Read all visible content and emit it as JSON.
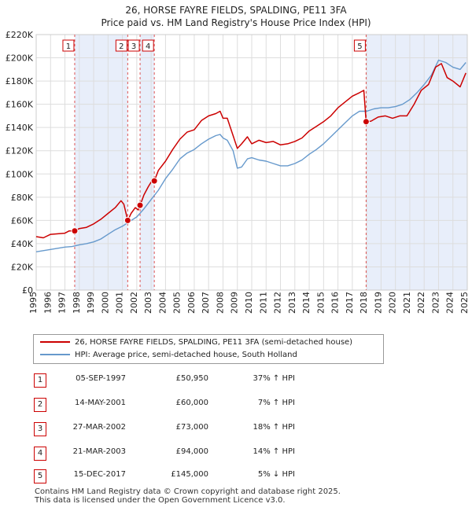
{
  "chart_data": {
    "type": "line",
    "title": "26, HORSE FAYRE FIELDS, SPALDING, PE11 3FA",
    "subtitle": "Price paid vs. HM Land Registry's House Price Index (HPI)",
    "xlim": [
      1995,
      2025
    ],
    "ylim": [
      0,
      220000
    ],
    "x_ticks": [
      "1995",
      "1996",
      "1997",
      "1998",
      "1999",
      "2000",
      "2001",
      "2002",
      "2003",
      "2004",
      "2005",
      "2006",
      "2007",
      "2008",
      "2009",
      "2010",
      "2011",
      "2012",
      "2013",
      "2014",
      "2015",
      "2016",
      "2017",
      "2018",
      "2019",
      "2020",
      "2021",
      "2022",
      "2023",
      "2024",
      "2025"
    ],
    "y_ticks": [
      {
        "value": 0,
        "label": "£0"
      },
      {
        "value": 20000,
        "label": "£20K"
      },
      {
        "value": 40000,
        "label": "£40K"
      },
      {
        "value": 60000,
        "label": "£60K"
      },
      {
        "value": 80000,
        "label": "£80K"
      },
      {
        "value": 100000,
        "label": "£100K"
      },
      {
        "value": 120000,
        "label": "£120K"
      },
      {
        "value": 140000,
        "label": "£140K"
      },
      {
        "value": 160000,
        "label": "£160K"
      },
      {
        "value": 180000,
        "label": "£180K"
      },
      {
        "value": 200000,
        "label": "£200K"
      },
      {
        "value": 220000,
        "label": "£220K"
      }
    ],
    "grid": true,
    "shaded_periods": [
      [
        1997.68,
        2001.37
      ],
      [
        2002.23,
        2003.22
      ],
      [
        2017.96,
        2025.0
      ]
    ],
    "series": [
      {
        "name": "26, HORSE FAYRE FIELDS, SPALDING, PE11 3FA (semi-detached house)",
        "color": "#cc0000",
        "x": [
          1995.0,
          1995.5,
          1996.0,
          1996.5,
          1997.0,
          1997.3,
          1997.68,
          1998.0,
          1998.5,
          1999.0,
          1999.5,
          2000.0,
          2000.5,
          2000.9,
          2001.1,
          2001.37,
          2001.6,
          2001.9,
          2002.1,
          2002.23,
          2002.5,
          2002.8,
          2003.0,
          2003.22,
          2003.5,
          2004.0,
          2004.5,
          2005.0,
          2005.5,
          2006.0,
          2006.5,
          2007.0,
          2007.5,
          2007.8,
          2008.0,
          2008.3,
          2008.7,
          2009.0,
          2009.3,
          2009.7,
          2010.0,
          2010.5,
          2011.0,
          2011.5,
          2012.0,
          2012.5,
          2013.0,
          2013.5,
          2014.0,
          2014.5,
          2015.0,
          2015.5,
          2016.0,
          2016.5,
          2017.0,
          2017.5,
          2017.8,
          2017.96,
          2018.3,
          2018.8,
          2019.3,
          2019.8,
          2020.3,
          2020.8,
          2021.3,
          2021.8,
          2022.3,
          2022.8,
          2023.2,
          2023.6,
          2024.0,
          2024.5,
          2024.9
        ],
        "values": [
          46000,
          45000,
          48000,
          48500,
          49000,
          51000,
          50950,
          53000,
          54000,
          57000,
          61000,
          66000,
          71000,
          77000,
          74000,
          60000,
          66000,
          71000,
          69000,
          73000,
          82000,
          89000,
          93000,
          94000,
          103000,
          111000,
          121000,
          130000,
          136000,
          138000,
          146000,
          150000,
          152000,
          154000,
          148000,
          148000,
          133000,
          122000,
          126000,
          132000,
          126000,
          129000,
          127000,
          128000,
          125000,
          126000,
          128000,
          131000,
          137000,
          141000,
          145000,
          150000,
          157000,
          162000,
          167000,
          170000,
          172000,
          145000,
          145500,
          149000,
          150000,
          148000,
          150000,
          150000,
          160000,
          172000,
          177000,
          192000,
          195000,
          183000,
          180000,
          175000,
          187000
        ]
      },
      {
        "name": "HPI: Average price, semi-detached house, South Holland",
        "color": "#6699cc",
        "x": [
          1995.0,
          1995.5,
          1996.0,
          1996.5,
          1997.0,
          1997.5,
          1998.0,
          1998.5,
          1999.0,
          1999.5,
          2000.0,
          2000.5,
          2001.0,
          2001.5,
          2002.0,
          2002.5,
          2003.0,
          2003.5,
          2004.0,
          2004.5,
          2005.0,
          2005.5,
          2006.0,
          2006.5,
          2007.0,
          2007.5,
          2007.8,
          2008.0,
          2008.3,
          2008.7,
          2009.0,
          2009.3,
          2009.7,
          2010.0,
          2010.5,
          2011.0,
          2011.5,
          2012.0,
          2012.5,
          2013.0,
          2013.5,
          2014.0,
          2014.5,
          2015.0,
          2015.5,
          2016.0,
          2016.5,
          2017.0,
          2017.5,
          2018.0,
          2018.5,
          2019.0,
          2019.5,
          2020.0,
          2020.5,
          2021.0,
          2021.5,
          2022.0,
          2022.5,
          2023.0,
          2023.5,
          2024.0,
          2024.5,
          2024.9
        ],
        "values": [
          33000,
          34000,
          35000,
          36000,
          37000,
          37500,
          39000,
          40000,
          41500,
          44000,
          48000,
          52000,
          55000,
          59000,
          63000,
          70000,
          78000,
          86000,
          96000,
          104000,
          113000,
          118000,
          121000,
          126000,
          130000,
          133000,
          134000,
          131000,
          129000,
          120000,
          105000,
          106000,
          113000,
          114000,
          112000,
          111000,
          109000,
          107000,
          107000,
          109000,
          112000,
          117000,
          121000,
          126000,
          132000,
          138000,
          144000,
          150000,
          154000,
          154000,
          156000,
          157000,
          157000,
          158000,
          160000,
          164000,
          170000,
          177000,
          185000,
          198000,
          196000,
          192000,
          190000,
          196000
        ]
      }
    ],
    "sales": [
      {
        "n": "1",
        "x": 1997.68,
        "value": 50950
      },
      {
        "n": "2",
        "x": 2001.37,
        "value": 60000
      },
      {
        "n": "3",
        "x": 2002.23,
        "value": 73000
      },
      {
        "n": "4",
        "x": 2003.22,
        "value": 94000
      },
      {
        "n": "5",
        "x": 2017.96,
        "value": 145000
      }
    ]
  },
  "legend": {
    "property_label": "26, HORSE FAYRE FIELDS, SPALDING, PE11 3FA (semi-detached house)",
    "hpi_label": "HPI: Average price, semi-detached house, South Holland",
    "property_color": "#cc0000",
    "hpi_color": "#6699cc"
  },
  "transactions": [
    {
      "n": "1",
      "date": "05-SEP-1997",
      "price": "£50,950",
      "hpi": "37% ↑ HPI"
    },
    {
      "n": "2",
      "date": "14-MAY-2001",
      "price": "£60,000",
      "hpi": "7% ↑ HPI"
    },
    {
      "n": "3",
      "date": "27-MAR-2002",
      "price": "£73,000",
      "hpi": "18% ↑ HPI"
    },
    {
      "n": "4",
      "date": "21-MAR-2003",
      "price": "£94,000",
      "hpi": "14% ↑ HPI"
    },
    {
      "n": "5",
      "date": "15-DEC-2017",
      "price": "£145,000",
      "hpi": "5% ↓ HPI"
    }
  ],
  "footer": {
    "line1": "Contains HM Land Registry data © Crown copyright and database right 2025.",
    "line2": "This data is licensed under the Open Government Licence v3.0."
  }
}
